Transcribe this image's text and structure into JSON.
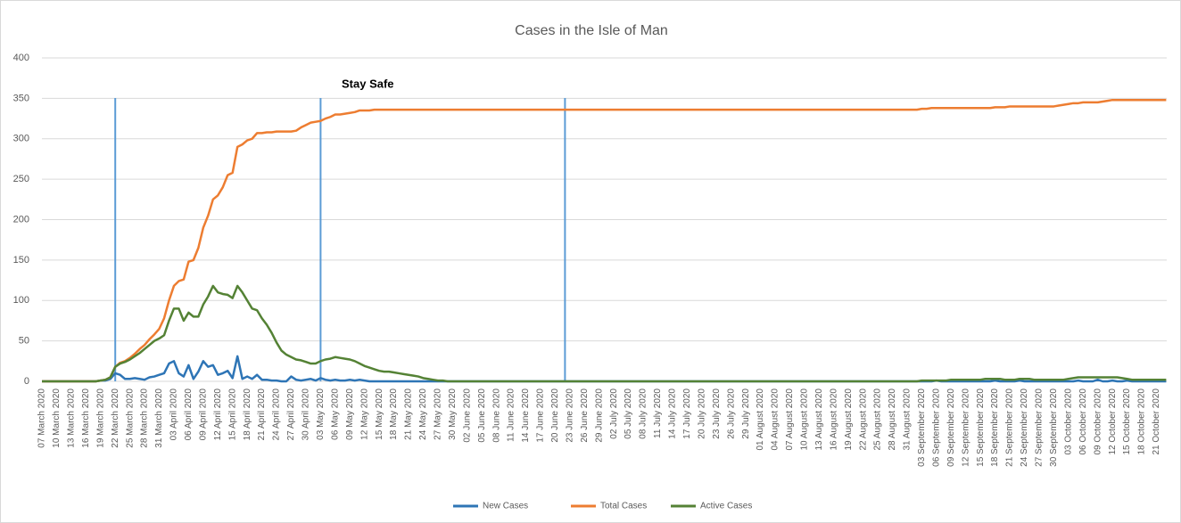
{
  "chart_data": {
    "type": "line",
    "title": "Cases in the Isle of Man",
    "annotation": "Stay Safe",
    "categories": [
      "07 March 2020",
      null,
      null,
      "10 March 2020",
      null,
      null,
      "13 March 2020",
      null,
      null,
      "16 March 2020",
      null,
      null,
      "19 March 2020",
      null,
      null,
      "22 March 2020",
      null,
      null,
      "25 March 2020",
      null,
      null,
      "28 March 2020",
      null,
      null,
      "31 March 2020",
      null,
      null,
      "03 April 2020",
      null,
      null,
      "06 April 2020",
      null,
      null,
      "09 April 2020",
      null,
      null,
      "12 April 2020",
      null,
      null,
      "15 April 2020",
      null,
      null,
      "18 April 2020",
      null,
      null,
      "21 April 2020",
      null,
      null,
      "24 April 2020",
      null,
      null,
      "27 April 2020",
      null,
      null,
      "30 April 2020",
      null,
      null,
      "03 May 2020",
      null,
      null,
      "06 May 2020",
      null,
      null,
      "09 May 2020",
      null,
      null,
      "12 May 2020",
      null,
      null,
      "15 May 2020",
      null,
      null,
      "18 May 2020",
      null,
      null,
      "21 May 2020",
      null,
      null,
      "24 May 2020",
      null,
      null,
      "27 May 2020",
      null,
      null,
      "30 May 2020",
      null,
      null,
      "02 June 2020",
      null,
      null,
      "05 June 2020",
      null,
      null,
      "08 June 2020",
      null,
      null,
      "11 June 2020",
      null,
      null,
      "14 June 2020",
      null,
      null,
      "17 June 2020",
      null,
      null,
      "20 June 2020",
      null,
      null,
      "23 June 2020",
      null,
      null,
      "26 June 2020",
      null,
      null,
      "29 June 2020",
      null,
      null,
      "02 July 2020",
      null,
      null,
      "05 July 2020",
      null,
      null,
      "08 July 2020",
      null,
      null,
      "11 July 2020",
      null,
      null,
      "14 July 2020",
      null,
      null,
      "17 July 2020",
      null,
      null,
      "20 July 2020",
      null,
      null,
      "23 July 2020",
      null,
      null,
      "26 July 2020",
      null,
      null,
      "29 July 2020",
      null,
      null,
      "01 August 2020",
      null,
      null,
      "04 August 2020",
      null,
      null,
      "07 August 2020",
      null,
      null,
      "10 August 2020",
      null,
      null,
      "13 August 2020",
      null,
      null,
      "16 August 2020",
      null,
      null,
      "19 August 2020",
      null,
      null,
      "22 August 2020",
      null,
      null,
      "25 August 2020",
      null,
      null,
      "28 August 2020",
      null,
      null,
      "31 August 2020",
      null,
      null,
      "03 September 2020",
      null,
      null,
      "06 September 2020",
      null,
      null,
      "09 September 2020",
      null,
      null,
      "12 September 2020",
      null,
      null,
      "15 September 2020",
      null,
      null,
      "18 September 2020",
      null,
      null,
      "21 September 2020",
      null,
      null,
      "24 September 2020",
      null,
      null,
      "27 September 2020",
      null,
      null,
      "30 September 2020",
      null,
      null,
      "03 October 2020",
      null,
      null,
      "06 October 2020",
      null,
      null,
      "09 October 2020",
      null,
      null,
      "12 October 2020",
      null,
      null,
      "15 October 2020",
      null,
      null,
      "18 October 2020",
      null,
      null,
      "21 October 2020",
      null,
      null
    ],
    "series": [
      {
        "name": "New Cases",
        "color": "#2e75b6",
        "values": [
          0,
          0,
          0,
          0,
          0,
          0,
          0,
          0,
          0,
          0,
          0,
          0,
          1,
          1,
          3,
          10,
          8,
          3,
          3,
          4,
          3,
          2,
          5,
          6,
          8,
          10,
          22,
          25,
          10,
          6,
          20,
          3,
          12,
          25,
          18,
          20,
          8,
          10,
          13,
          4,
          31,
          3,
          6,
          3,
          8,
          2,
          2,
          1,
          1,
          0,
          0,
          6,
          2,
          1,
          2,
          3,
          1,
          4,
          2,
          1,
          2,
          1,
          1,
          2,
          1,
          2,
          1,
          0,
          0,
          0,
          0,
          0,
          0,
          0,
          0,
          0,
          0,
          0,
          0,
          0,
          0,
          0,
          0,
          0,
          0,
          0,
          0,
          0,
          0,
          0,
          0,
          0,
          0,
          0,
          0,
          0,
          0,
          0,
          0,
          0,
          0,
          0,
          0,
          0,
          0,
          0,
          0,
          0,
          0,
          0,
          0,
          0,
          0,
          0,
          0,
          0,
          0,
          0,
          0,
          0,
          0,
          0,
          0,
          0,
          0,
          0,
          0,
          0,
          0,
          0,
          0,
          0,
          0,
          0,
          0,
          0,
          0,
          0,
          0,
          0,
          0,
          0,
          0,
          0,
          0,
          0,
          0,
          0,
          0,
          0,
          0,
          0,
          0,
          0,
          0,
          0,
          0,
          0,
          0,
          0,
          0,
          0,
          0,
          0,
          0,
          0,
          0,
          0,
          0,
          0,
          0,
          0,
          0,
          0,
          0,
          0,
          0,
          0,
          0,
          0,
          0,
          0,
          0,
          1,
          0,
          0,
          0,
          0,
          0,
          0,
          0,
          0,
          0,
          0,
          0,
          1,
          0,
          0,
          0,
          0,
          1,
          0,
          0,
          0,
          0,
          0,
          0,
          0,
          0,
          0,
          0,
          0,
          1,
          0,
          0,
          0,
          2,
          0,
          0,
          1,
          0,
          0,
          1,
          0,
          0,
          0,
          0,
          0,
          0,
          0,
          0
        ]
      },
      {
        "name": "Total Cases",
        "color": "#ed7d31",
        "values": [
          0,
          0,
          0,
          0,
          0,
          0,
          0,
          0,
          0,
          0,
          0,
          0,
          1,
          2,
          5,
          18,
          23,
          25,
          29,
          34,
          40,
          45,
          52,
          58,
          65,
          78,
          100,
          118,
          124,
          126,
          148,
          150,
          165,
          190,
          205,
          225,
          230,
          240,
          255,
          258,
          290,
          293,
          298,
          300,
          307,
          307,
          308,
          308,
          309,
          309,
          309,
          309,
          310,
          314,
          317,
          320,
          321,
          322,
          325,
          327,
          330,
          330,
          331,
          332,
          333,
          335,
          335,
          335,
          336,
          336,
          336,
          336,
          336,
          336,
          336,
          336,
          336,
          336,
          336,
          336,
          336,
          336,
          336,
          336,
          336,
          336,
          336,
          336,
          336,
          336,
          336,
          336,
          336,
          336,
          336,
          336,
          336,
          336,
          336,
          336,
          336,
          336,
          336,
          336,
          336,
          336,
          336,
          336,
          336,
          336,
          336,
          336,
          336,
          336,
          336,
          336,
          336,
          336,
          336,
          336,
          336,
          336,
          336,
          336,
          336,
          336,
          336,
          336,
          336,
          336,
          336,
          336,
          336,
          336,
          336,
          336,
          336,
          336,
          336,
          336,
          336,
          336,
          336,
          336,
          336,
          336,
          336,
          336,
          336,
          336,
          336,
          336,
          336,
          336,
          336,
          336,
          336,
          336,
          336,
          336,
          336,
          336,
          336,
          336,
          336,
          336,
          336,
          336,
          336,
          336,
          336,
          336,
          336,
          336,
          336,
          336,
          336,
          336,
          336,
          336,
          337,
          337,
          338,
          338,
          338,
          338,
          338,
          338,
          338,
          338,
          338,
          338,
          338,
          338,
          338,
          339,
          339,
          339,
          340,
          340,
          340,
          340,
          340,
          340,
          340,
          340,
          340,
          340,
          341,
          342,
          343,
          344,
          344,
          345,
          345,
          345,
          345,
          346,
          347,
          348,
          348,
          348,
          348,
          348,
          348,
          348,
          348,
          348,
          348,
          348,
          348
        ]
      },
      {
        "name": "Active Cases",
        "color": "#548235",
        "values": [
          0,
          0,
          0,
          0,
          0,
          0,
          0,
          0,
          0,
          0,
          0,
          0,
          1,
          2,
          5,
          18,
          22,
          24,
          27,
          31,
          35,
          40,
          45,
          50,
          53,
          57,
          75,
          90,
          90,
          75,
          85,
          80,
          80,
          95,
          105,
          118,
          110,
          108,
          107,
          103,
          118,
          110,
          100,
          90,
          88,
          78,
          70,
          60,
          48,
          38,
          33,
          30,
          27,
          26,
          24,
          22,
          22,
          25,
          27,
          28,
          30,
          29,
          28,
          27,
          25,
          22,
          19,
          17,
          15,
          13,
          12,
          12,
          11,
          10,
          9,
          8,
          7,
          6,
          4,
          3,
          2,
          1,
          1,
          0,
          0,
          0,
          0,
          0,
          0,
          0,
          0,
          0,
          0,
          0,
          0,
          0,
          0,
          0,
          0,
          0,
          0,
          0,
          0,
          0,
          0,
          0,
          0,
          0,
          0,
          0,
          0,
          0,
          0,
          0,
          0,
          0,
          0,
          0,
          0,
          0,
          0,
          0,
          0,
          0,
          0,
          0,
          0,
          0,
          0,
          0,
          0,
          0,
          0,
          0,
          0,
          0,
          0,
          0,
          0,
          0,
          0,
          0,
          0,
          0,
          0,
          0,
          0,
          0,
          0,
          0,
          0,
          0,
          0,
          0,
          0,
          0,
          0,
          0,
          0,
          0,
          0,
          0,
          0,
          0,
          0,
          0,
          0,
          0,
          0,
          0,
          0,
          0,
          0,
          0,
          0,
          0,
          0,
          0,
          0,
          0,
          1,
          1,
          1,
          1,
          1,
          1,
          2,
          2,
          2,
          2,
          2,
          2,
          2,
          3,
          3,
          3,
          3,
          2,
          2,
          2,
          3,
          3,
          3,
          2,
          2,
          2,
          2,
          2,
          2,
          2,
          3,
          4,
          5,
          5,
          5,
          5,
          5,
          5,
          5,
          5,
          5,
          4,
          3,
          2,
          2,
          2,
          2,
          2,
          2,
          2,
          2
        ]
      }
    ],
    "ylim": [
      0,
      400
    ],
    "yticks": [
      0,
      50,
      100,
      150,
      200,
      250,
      300,
      350,
      400
    ],
    "grid": true,
    "legend": "bottom"
  }
}
